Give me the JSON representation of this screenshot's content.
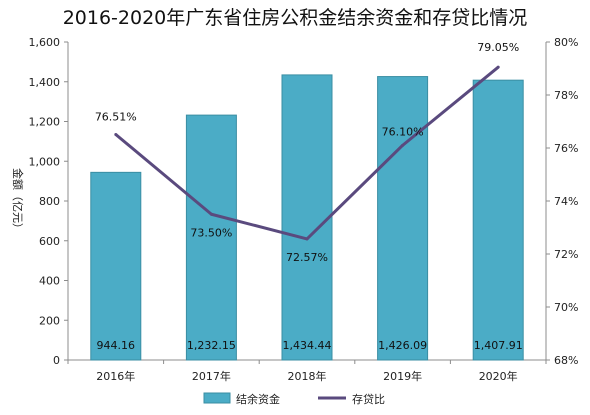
{
  "chart_data": {
    "type": "bar",
    "title": "2016-2020年广东省住房公积金结余资金和存贷比情况",
    "ylabel": "金额（亿元）",
    "y2label": "",
    "categories": [
      "2016年",
      "2017年",
      "2018年",
      "2019年",
      "2020年"
    ],
    "ylim": [
      0,
      1600
    ],
    "yticks": [
      0,
      200,
      400,
      600,
      800,
      1000,
      1200,
      1400,
      1600
    ],
    "ytick_labels": [
      "0",
      "200",
      "400",
      "600",
      "800",
      "1,000",
      "1,200",
      "1,400",
      "1,600"
    ],
    "y2lim": [
      68,
      80
    ],
    "y2ticks": [
      68,
      70,
      72,
      74,
      76,
      78,
      80
    ],
    "y2tick_labels": [
      "68%",
      "70%",
      "72%",
      "74%",
      "76%",
      "78%",
      "80%"
    ],
    "legend_position": "bottom",
    "series": [
      {
        "name": "结余资金",
        "type": "bar",
        "axis": "left",
        "color": "#4bacc6",
        "values": [
          944.16,
          1232.15,
          1434.44,
          1426.09,
          1407.91
        ],
        "labels": [
          "944.16",
          "1,232.15",
          "1,434.44",
          "1,426.09",
          "1,407.91"
        ]
      },
      {
        "name": "存贷比",
        "type": "line",
        "axis": "right",
        "color": "#5a4a7e",
        "values": [
          76.51,
          73.5,
          72.57,
          76.1,
          79.05
        ],
        "labels": [
          "76.51%",
          "73.50%",
          "72.57%",
          "76.10%",
          "79.05%"
        ]
      }
    ]
  }
}
